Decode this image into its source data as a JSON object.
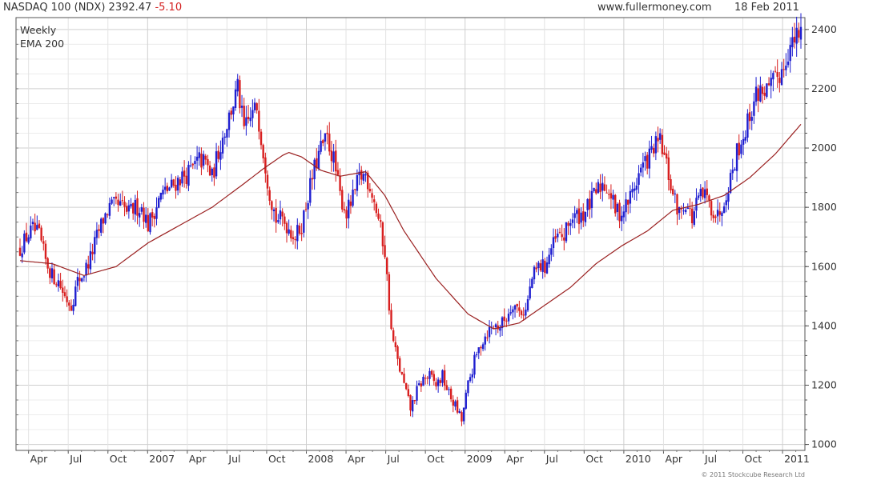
{
  "header": {
    "ticker": "NASDAQ 100 (NDX) 2392.47",
    "change": "-5.10",
    "site": "www.fullermoney.com",
    "date": "18 Feb 2011"
  },
  "legend": {
    "series1": "Weekly",
    "series2": "EMA 200"
  },
  "copyright": "© 2011 Stockcube Research Ltd",
  "colors": {
    "up": "#1f1fd0",
    "down": "#d81f1f",
    "ema": "#9a2020",
    "grid": "#d9d9d9"
  },
  "chart_data": {
    "type": "candlestick",
    "title": "NASDAQ 100 (NDX)",
    "xlabel": "",
    "ylabel": "",
    "ylim": [
      980,
      2440
    ],
    "y_ticks": [
      1000,
      1200,
      1400,
      1600,
      1800,
      2000,
      2200,
      2400
    ],
    "x_tick_labels": [
      "Apr",
      "Jul",
      "Oct",
      "2007",
      "Apr",
      "Jul",
      "Oct",
      "2008",
      "Apr",
      "Jul",
      "Oct",
      "2009",
      "Apr",
      "Jul",
      "Oct",
      "2010",
      "Apr",
      "Jul",
      "Oct",
      "2011"
    ],
    "grid": true,
    "legend_position": "top-left",
    "series": [
      {
        "name": "Weekly",
        "type": "candlestick"
      },
      {
        "name": "EMA 200",
        "type": "line"
      }
    ],
    "anchors": [
      [
        0,
        1660
      ],
      [
        3,
        1700
      ],
      [
        6,
        1725
      ],
      [
        9,
        1705
      ],
      [
        12,
        1620
      ],
      [
        15,
        1570
      ],
      [
        18,
        1550
      ],
      [
        21,
        1500
      ],
      [
        24,
        1470
      ],
      [
        27,
        1550
      ],
      [
        30,
        1580
      ],
      [
        33,
        1630
      ],
      [
        36,
        1700
      ],
      [
        39,
        1760
      ],
      [
        42,
        1800
      ],
      [
        45,
        1805
      ],
      [
        48,
        1800
      ],
      [
        51,
        1780
      ],
      [
        54,
        1800
      ],
      [
        57,
        1800
      ],
      [
        60,
        1740
      ],
      [
        63,
        1790
      ],
      [
        66,
        1840
      ],
      [
        69,
        1860
      ],
      [
        72,
        1875
      ],
      [
        75,
        1900
      ],
      [
        78,
        1910
      ],
      [
        81,
        1930
      ],
      [
        84,
        1960
      ],
      [
        87,
        1950
      ],
      [
        90,
        1900
      ],
      [
        93,
        1990
      ],
      [
        96,
        2060
      ],
      [
        99,
        2130
      ],
      [
        102,
        2200
      ],
      [
        105,
        2060
      ],
      [
        108,
        2100
      ],
      [
        111,
        2140
      ],
      [
        114,
        1990
      ],
      [
        117,
        1850
      ],
      [
        120,
        1760
      ],
      [
        123,
        1760
      ],
      [
        126,
        1730
      ],
      [
        129,
        1700
      ],
      [
        132,
        1740
      ],
      [
        135,
        1840
      ],
      [
        138,
        1930
      ],
      [
        141,
        2000
      ],
      [
        144,
        2030
      ],
      [
        147,
        1960
      ],
      [
        150,
        1840
      ],
      [
        153,
        1780
      ],
      [
        156,
        1830
      ],
      [
        159,
        1900
      ],
      [
        162,
        1910
      ],
      [
        165,
        1850
      ],
      [
        168,
        1760
      ],
      [
        171,
        1650
      ],
      [
        174,
        1380
      ],
      [
        177,
        1280
      ],
      [
        180,
        1200
      ],
      [
        183,
        1120
      ],
      [
        186,
        1180
      ],
      [
        189,
        1220
      ],
      [
        192,
        1230
      ],
      [
        195,
        1200
      ],
      [
        198,
        1230
      ],
      [
        201,
        1170
      ],
      [
        204,
        1130
      ],
      [
        207,
        1080
      ],
      [
        210,
        1200
      ],
      [
        213,
        1280
      ],
      [
        216,
        1340
      ],
      [
        219,
        1380
      ],
      [
        222,
        1400
      ],
      [
        225,
        1400
      ],
      [
        228,
        1430
      ],
      [
        231,
        1480
      ],
      [
        234,
        1450
      ],
      [
        237,
        1450
      ],
      [
        240,
        1560
      ],
      [
        243,
        1600
      ],
      [
        246,
        1600
      ],
      [
        249,
        1660
      ],
      [
        252,
        1700
      ],
      [
        255,
        1700
      ],
      [
        258,
        1760
      ],
      [
        261,
        1770
      ],
      [
        264,
        1780
      ],
      [
        267,
        1810
      ],
      [
        270,
        1850
      ],
      [
        273,
        1880
      ],
      [
        276,
        1860
      ],
      [
        279,
        1790
      ],
      [
        282,
        1780
      ],
      [
        285,
        1820
      ],
      [
        288,
        1870
      ],
      [
        291,
        1930
      ],
      [
        294,
        1960
      ],
      [
        297,
        2000
      ],
      [
        300,
        2020
      ],
      [
        303,
        1940
      ],
      [
        306,
        1840
      ],
      [
        309,
        1780
      ],
      [
        312,
        1820
      ],
      [
        315,
        1760
      ],
      [
        318,
        1830
      ],
      [
        321,
        1840
      ],
      [
        324,
        1800
      ],
      [
        327,
        1770
      ],
      [
        330,
        1830
      ],
      [
        333,
        1900
      ],
      [
        336,
        1990
      ],
      [
        339,
        2040
      ],
      [
        342,
        2110
      ],
      [
        345,
        2180
      ],
      [
        348,
        2200
      ],
      [
        351,
        2190
      ],
      [
        354,
        2230
      ],
      [
        357,
        2260
      ],
      [
        360,
        2330
      ],
      [
        363,
        2360
      ],
      [
        366,
        2392
      ]
    ],
    "ema_anchors": [
      [
        0,
        1620
      ],
      [
        15,
        1610
      ],
      [
        30,
        1570
      ],
      [
        45,
        1600
      ],
      [
        60,
        1680
      ],
      [
        75,
        1740
      ],
      [
        90,
        1800
      ],
      [
        105,
        1880
      ],
      [
        114,
        1930
      ],
      [
        123,
        1975
      ],
      [
        126,
        1985
      ],
      [
        132,
        1970
      ],
      [
        141,
        1925
      ],
      [
        150,
        1905
      ],
      [
        162,
        1920
      ],
      [
        171,
        1840
      ],
      [
        180,
        1720
      ],
      [
        195,
        1560
      ],
      [
        210,
        1440
      ],
      [
        222,
        1390
      ],
      [
        234,
        1410
      ],
      [
        246,
        1470
      ],
      [
        258,
        1530
      ],
      [
        270,
        1610
      ],
      [
        282,
        1670
      ],
      [
        294,
        1720
      ],
      [
        306,
        1790
      ],
      [
        318,
        1810
      ],
      [
        330,
        1840
      ],
      [
        342,
        1900
      ],
      [
        354,
        1980
      ],
      [
        366,
        2080
      ]
    ]
  }
}
